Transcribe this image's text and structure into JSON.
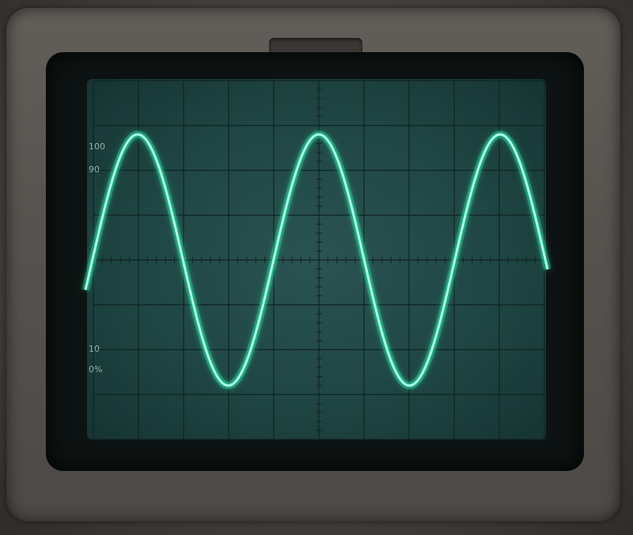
{
  "scope": {
    "description_colors": {
      "trace": "#7dffd8",
      "trace_glow": "#2ef0b0",
      "screen": "#214a48",
      "graticule": "#0f2423",
      "bezel": "#57534f"
    },
    "graticule_labels": {
      "top_left_100": "100",
      "top_left_90": "90",
      "bottom_left_10": "10",
      "bottom_left_0": "0%"
    },
    "waveform": {
      "type": "sine",
      "cycles_visible": 2.55,
      "amplitude_divisions": 2.8
    }
  }
}
